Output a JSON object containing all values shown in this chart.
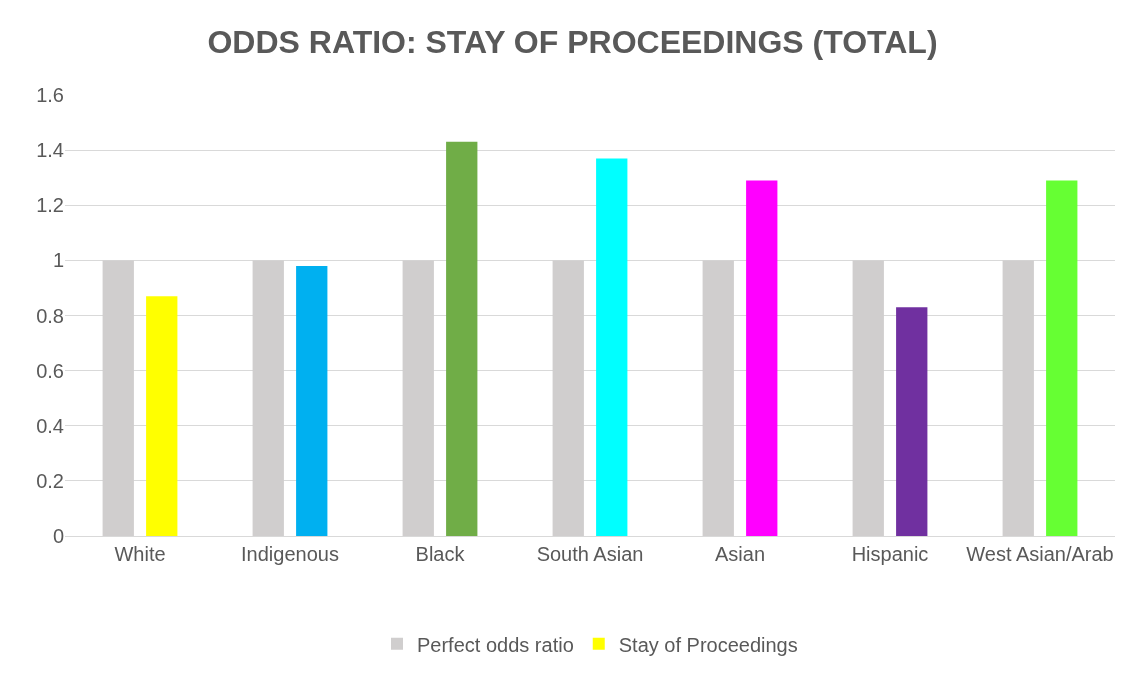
{
  "chart_data": {
    "type": "bar",
    "title": "ODDS RATIO: STAY OF PROCEEDINGS (TOTAL)",
    "categories": [
      "White",
      "Indigenous",
      "Black",
      "South Asian",
      "Asian",
      "Hispanic",
      "West Asian/Arab"
    ],
    "series": [
      {
        "name": "Perfect odds ratio",
        "color": "#d0cece",
        "values": [
          1,
          1,
          1,
          1,
          1,
          1,
          1
        ]
      },
      {
        "name": "Stay of Proceedings",
        "colors": [
          "#ffff00",
          "#00b0f0",
          "#70ad47",
          "#00ffff",
          "#ff00ff",
          "#7030a0",
          "#66ff33"
        ],
        "values": [
          0.87,
          0.98,
          1.43,
          1.37,
          1.29,
          0.83,
          1.29
        ]
      }
    ],
    "ylim": [
      0,
      1.6
    ],
    "yticks": [
      0,
      0.2,
      0.4,
      0.6,
      0.8,
      1,
      1.2,
      1.4,
      1.6
    ],
    "grid": "y",
    "legend": "bottom"
  }
}
